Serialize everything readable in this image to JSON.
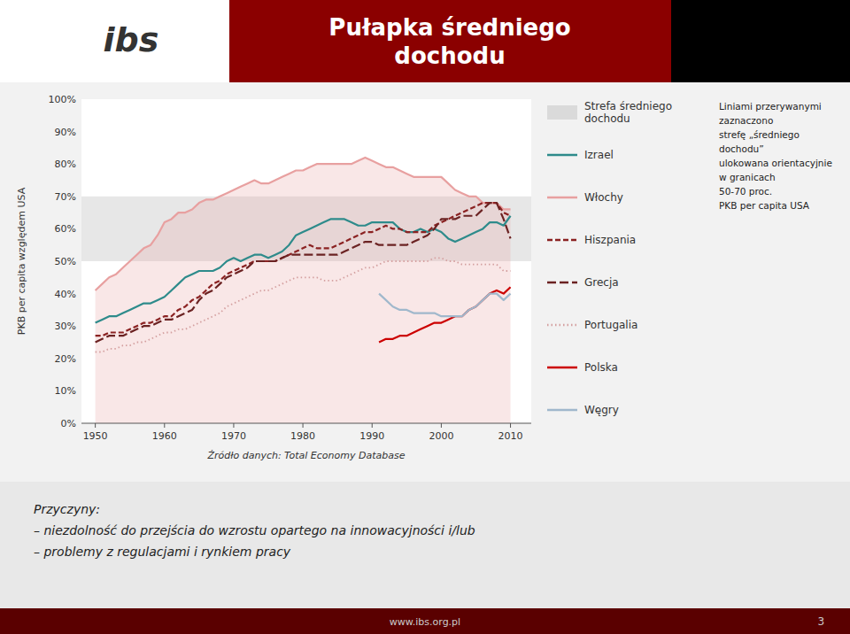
{
  "chart_data": {
    "type": "line",
    "title": "Pułapka średniego\ndochodu",
    "logo": "ibs",
    "ylabel": "PKB per capita względem USA",
    "source": "Źródło danych: Total Economy Database",
    "annotation": "Liniami przerywanymi\nzaznaczono\nstrefę „średniego\ndochodu”\nulokowana orientacyjnie\nw granicach\n50-70 proc.\nPKB per capita USA",
    "footer": [
      "Przyczyny:",
      "– niezdolność do przejścia do wzrostu opartego na innowacyjności i/lub",
      "– problemy z regulacjami i rynkiem pracy"
    ],
    "website": "www.ibs.org.pl",
    "page_number": "3",
    "legend": "right",
    "grid": false,
    "band": {
      "name": "Strefa średniego\ndochodu",
      "values": [
        50,
        70
      ],
      "color": "#d3d3d3"
    },
    "xlim": [
      1948,
      2013
    ],
    "xticks": [
      1950,
      1960,
      1970,
      1980,
      1990,
      2000,
      2010
    ],
    "ylim": [
      0,
      100
    ],
    "yticks": [
      {
        "value": 0,
        "label": "0%"
      },
      {
        "value": 10,
        "label": "10%"
      },
      {
        "value": 20,
        "label": "20%"
      },
      {
        "value": 30,
        "label": "30%"
      },
      {
        "value": 40,
        "label": "40%"
      },
      {
        "value": 50,
        "label": "50%"
      },
      {
        "value": 60,
        "label": "60%"
      },
      {
        "value": 70,
        "label": "70%"
      },
      {
        "value": 80,
        "label": "80%"
      },
      {
        "value": 90,
        "label": "90%"
      },
      {
        "value": 100,
        "label": "100%"
      }
    ],
    "x": [
      1950,
      1951,
      1952,
      1953,
      1954,
      1955,
      1956,
      1957,
      1958,
      1959,
      1960,
      1961,
      1962,
      1963,
      1964,
      1965,
      1966,
      1967,
      1968,
      1969,
      1970,
      1971,
      1972,
      1973,
      1974,
      1975,
      1976,
      1977,
      1978,
      1979,
      1980,
      1981,
      1982,
      1983,
      1984,
      1985,
      1986,
      1987,
      1988,
      1989,
      1990,
      1991,
      1992,
      1993,
      1994,
      1995,
      1996,
      1997,
      1998,
      1999,
      2000,
      2001,
      2002,
      2003,
      2004,
      2005,
      2006,
      2007,
      2008,
      2009,
      2010
    ],
    "series": [
      {
        "name": "Izrael",
        "color": "#2e8b8b",
        "line_style": "solid",
        "values": [
          31,
          32,
          33,
          33,
          34,
          35,
          36,
          37,
          37,
          38,
          39,
          41,
          43,
          45,
          46,
          47,
          47,
          47,
          48,
          50,
          51,
          50,
          51,
          52,
          52,
          51,
          52,
          53,
          55,
          58,
          59,
          60,
          61,
          62,
          63,
          63,
          63,
          62,
          61,
          61,
          62,
          62,
          62,
          62,
          60,
          59,
          59,
          60,
          59,
          60,
          59,
          57,
          56,
          57,
          58,
          59,
          60,
          62,
          62,
          61,
          64
        ]
      },
      {
        "name": "Włochy",
        "color": "#e8a0a0",
        "line_style": "solid",
        "type": "area",
        "values": [
          41,
          43,
          45,
          46,
          48,
          50,
          52,
          54,
          55,
          58,
          62,
          63,
          65,
          65,
          66,
          68,
          69,
          69,
          70,
          71,
          72,
          73,
          74,
          75,
          74,
          74,
          75,
          76,
          77,
          78,
          78,
          79,
          80,
          80,
          80,
          80,
          80,
          80,
          81,
          82,
          81,
          80,
          79,
          79,
          78,
          77,
          76,
          76,
          76,
          76,
          76,
          74,
          72,
          71,
          70,
          70,
          68,
          68,
          68,
          66,
          66
        ]
      },
      {
        "name": "Hiszpania",
        "color": "#8b2222",
        "line_style": "dashed",
        "values": [
          27,
          27,
          28,
          28,
          28,
          29,
          30,
          31,
          31,
          32,
          33,
          33,
          35,
          36,
          38,
          39,
          41,
          43,
          44,
          46,
          47,
          48,
          49,
          50,
          50,
          50,
          50,
          51,
          52,
          53,
          54,
          55,
          54,
          54,
          54,
          55,
          56,
          57,
          58,
          59,
          59,
          60,
          61,
          60,
          60,
          59,
          59,
          59,
          59,
          61,
          62,
          63,
          64,
          65,
          66,
          67,
          68,
          68,
          68,
          65,
          64
        ]
      },
      {
        "name": "Grecja",
        "color": "#6b2222",
        "line_style": "longdash",
        "values": [
          25,
          26,
          27,
          27,
          27,
          28,
          29,
          30,
          30,
          31,
          32,
          32,
          33,
          34,
          35,
          38,
          40,
          41,
          43,
          45,
          46,
          47,
          48,
          50,
          50,
          50,
          50,
          51,
          52,
          52,
          52,
          52,
          52,
          52,
          52,
          52,
          53,
          54,
          55,
          56,
          56,
          55,
          55,
          55,
          55,
          55,
          56,
          57,
          58,
          60,
          63,
          63,
          63,
          64,
          64,
          64,
          66,
          68,
          68,
          63,
          57
        ]
      },
      {
        "name": "Portugalia",
        "color": "#d4a0a0",
        "line_style": "dotted",
        "values": [
          22,
          22,
          23,
          23,
          24,
          24,
          25,
          25,
          26,
          27,
          28,
          28,
          29,
          29,
          30,
          31,
          32,
          33,
          34,
          36,
          37,
          38,
          39,
          40,
          41,
          41,
          42,
          43,
          44,
          45,
          45,
          45,
          45,
          44,
          44,
          44,
          45,
          46,
          47,
          48,
          48,
          49,
          50,
          50,
          50,
          50,
          50,
          50,
          50,
          51,
          51,
          50,
          50,
          49,
          49,
          49,
          49,
          49,
          49,
          47,
          47
        ]
      },
      {
        "name": "Polska",
        "color": "#cc0000",
        "line_style": "solid",
        "values": [
          null,
          null,
          null,
          null,
          null,
          null,
          null,
          null,
          null,
          null,
          null,
          null,
          null,
          null,
          null,
          null,
          null,
          null,
          null,
          null,
          null,
          null,
          null,
          null,
          null,
          null,
          null,
          null,
          null,
          null,
          null,
          null,
          null,
          null,
          null,
          null,
          null,
          null,
          null,
          null,
          null,
          25,
          26,
          26,
          27,
          27,
          28,
          29,
          30,
          31,
          31,
          32,
          33,
          33,
          35,
          36,
          38,
          40,
          41,
          40,
          42
        ]
      },
      {
        "name": "Węgry",
        "color": "#a0b8cc",
        "line_style": "solid",
        "values": [
          null,
          null,
          null,
          null,
          null,
          null,
          null,
          null,
          null,
          null,
          null,
          null,
          null,
          null,
          null,
          null,
          null,
          null,
          null,
          null,
          null,
          null,
          null,
          null,
          null,
          null,
          null,
          null,
          null,
          null,
          null,
          null,
          null,
          null,
          null,
          null,
          null,
          null,
          null,
          null,
          null,
          40,
          38,
          36,
          35,
          35,
          34,
          34,
          34,
          34,
          33,
          33,
          33,
          33,
          35,
          36,
          38,
          40,
          40,
          38,
          40
        ]
      }
    ]
  }
}
